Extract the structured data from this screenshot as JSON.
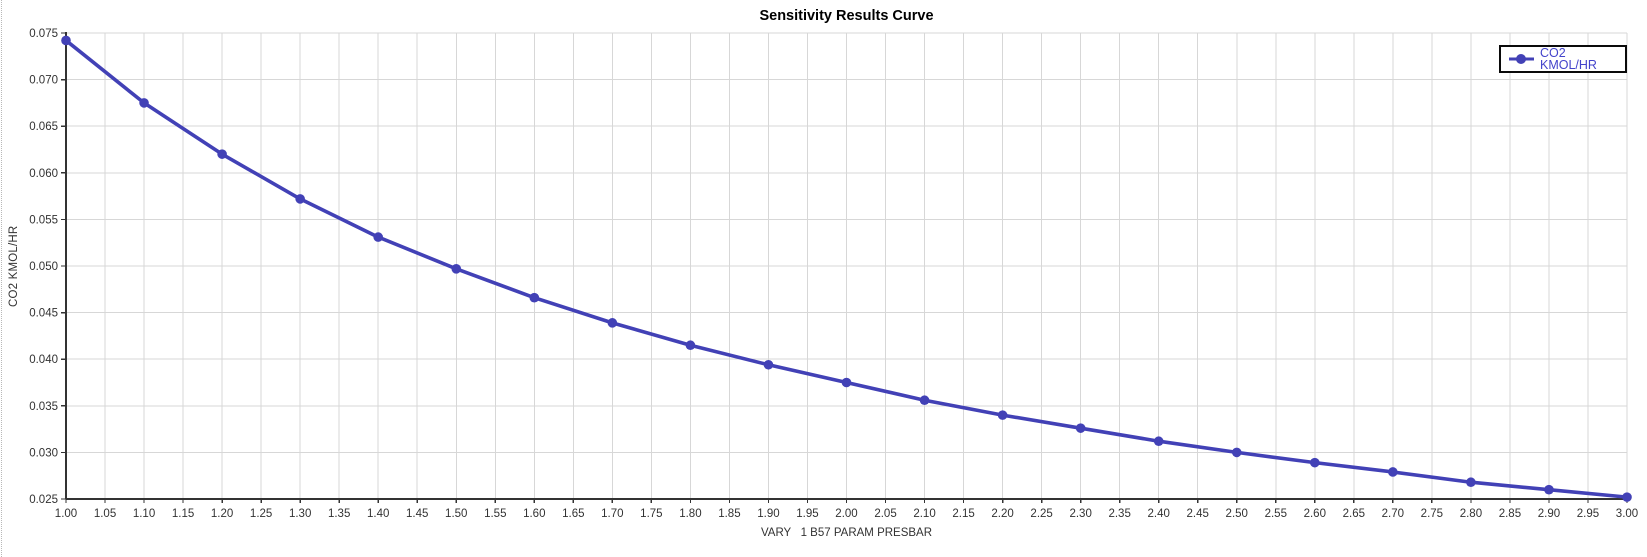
{
  "window": {
    "background": "#ffffff"
  },
  "chart": {
    "title": "Sensitivity Results Curve",
    "x_axis_title": "VARY   1 B57 PARAM PRESBAR",
    "y_axis_title": "CO2 KMOL/HR",
    "legend": {
      "label": "CO2 KMOL/HR",
      "marker_icon": "circle-on-line-icon"
    },
    "colors": {
      "series": "#4241b6",
      "legend_text": "#4343cb",
      "grid": "#d7d7d7",
      "axis": "#333333",
      "tick_text": "#323232",
      "title_text": "#000000"
    }
  },
  "chart_data": {
    "type": "line",
    "title": "Sensitivity Results Curve",
    "xlabel": "VARY   1 B57 PARAM PRESBAR",
    "ylabel": "CO2 KMOL/HR",
    "xlim": [
      1.0,
      3.0
    ],
    "ylim": [
      0.025,
      0.075
    ],
    "x_tick_step": 0.05,
    "y_tick_step": 0.005,
    "grid": true,
    "legend_position": "top-right",
    "marker": "circle",
    "x_ticks": [
      "1.00",
      "1.05",
      "1.10",
      "1.15",
      "1.20",
      "1.25",
      "1.30",
      "1.35",
      "1.40",
      "1.45",
      "1.50",
      "1.55",
      "1.60",
      "1.65",
      "1.70",
      "1.75",
      "1.80",
      "1.85",
      "1.90",
      "1.95",
      "2.00",
      "2.05",
      "2.10",
      "2.15",
      "2.20",
      "2.25",
      "2.30",
      "2.35",
      "2.40",
      "2.45",
      "2.50",
      "2.55",
      "2.60",
      "2.65",
      "2.70",
      "2.75",
      "2.80",
      "2.85",
      "2.90",
      "2.95",
      "3.00"
    ],
    "y_ticks": [
      "0.025",
      "0.030",
      "0.035",
      "0.040",
      "0.045",
      "0.050",
      "0.055",
      "0.060",
      "0.065",
      "0.070",
      "0.075"
    ],
    "series": [
      {
        "name": "CO2 KMOL/HR",
        "x": [
          1.0,
          1.1,
          1.2,
          1.3,
          1.4,
          1.5,
          1.6,
          1.7,
          1.8,
          1.9,
          2.0,
          2.1,
          2.2,
          2.3,
          2.4,
          2.5,
          2.6,
          2.7,
          2.8,
          2.9,
          3.0
        ],
        "y": [
          0.0742,
          0.0675,
          0.062,
          0.0572,
          0.0531,
          0.0497,
          0.0466,
          0.0439,
          0.0415,
          0.0394,
          0.0375,
          0.0356,
          0.034,
          0.0326,
          0.0312,
          0.03,
          0.0289,
          0.0279,
          0.0268,
          0.026,
          0.0252
        ]
      }
    ]
  }
}
